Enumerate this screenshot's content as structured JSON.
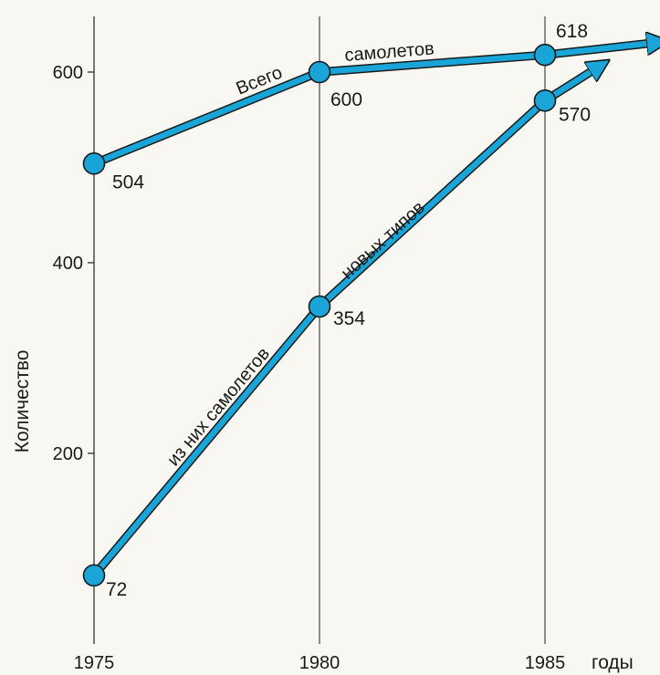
{
  "chart_data": {
    "type": "line",
    "title": "",
    "xlabel": "годы",
    "ylabel": "Количество",
    "x": [
      1975,
      1980,
      1985
    ],
    "xlim": [
      1975,
      1985
    ],
    "ylim": [
      0,
      650
    ],
    "y_ticks": [
      200,
      400,
      600
    ],
    "x_ticks": [
      1975,
      1980,
      1985
    ],
    "grid": "vertical lines at 1980 and 1985",
    "line_color": "#1aa5d8",
    "series": [
      {
        "name": "Всего самолетов",
        "label_parts": [
          "Всего",
          "самолетов"
        ],
        "values": [
          504,
          600,
          618
        ],
        "point_labels": [
          "504",
          "600",
          "618"
        ]
      },
      {
        "name": "из них самолетов новых типов",
        "label_parts": [
          "из них самолетов",
          "новых типов"
        ],
        "values": [
          72,
          354,
          570
        ],
        "point_labels": [
          "72",
          "354",
          "570"
        ]
      }
    ]
  }
}
